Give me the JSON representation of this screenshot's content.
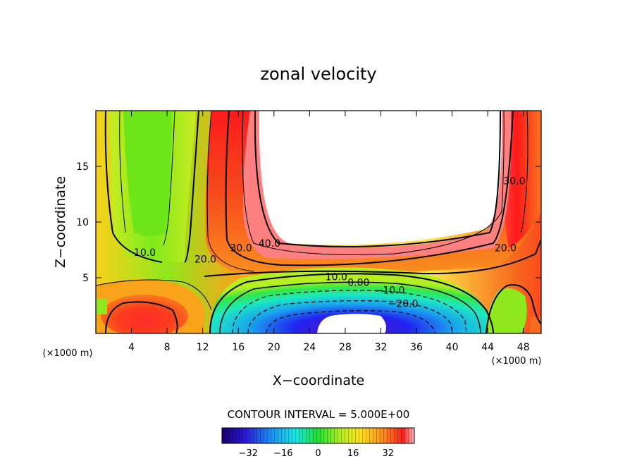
{
  "chart_data": {
    "type": "heatmap",
    "title": "zonal velocity",
    "xlabel": "X−coordinate",
    "ylabel": "Z−coordinate",
    "x_unit": "(×1000 m)",
    "y_unit": "(×1000 m)",
    "xlim": [
      0,
      50
    ],
    "ylim": [
      0,
      20
    ],
    "x_ticks": [
      4,
      8,
      12,
      16,
      20,
      24,
      28,
      32,
      36,
      40,
      44,
      48
    ],
    "y_ticks": [
      5,
      10,
      15
    ],
    "contour_interval_label": "CONTOUR INTERVAL = 5.000E+00",
    "contour_labels": [
      {
        "text": "10.0",
        "x": 5.5,
        "z": 7.1
      },
      {
        "text": "20.0",
        "x": 12.3,
        "z": 6.5
      },
      {
        "text": "30.0",
        "x": 16.3,
        "z": 7.5
      },
      {
        "text": "40.0",
        "x": 19.5,
        "z": 7.9
      },
      {
        "text": "10.0",
        "x": 27.0,
        "z": 4.9
      },
      {
        "text": "0.00",
        "x": 29.5,
        "z": 4.4
      },
      {
        "text": "−10.0",
        "x": 33.0,
        "z": 3.7
      },
      {
        "text": "−20.0",
        "x": 34.5,
        "z": 2.5
      },
      {
        "text": "20.0",
        "x": 46.0,
        "z": 7.5
      },
      {
        "text": "30.0",
        "x": 47.0,
        "z": 13.5
      }
    ],
    "colorbar": {
      "ticks": [
        -32,
        -16,
        0,
        16,
        32
      ],
      "tick_labels": [
        "−32",
        "−16",
        "0",
        "16",
        "32"
      ],
      "range": [
        -44,
        44
      ]
    }
  }
}
